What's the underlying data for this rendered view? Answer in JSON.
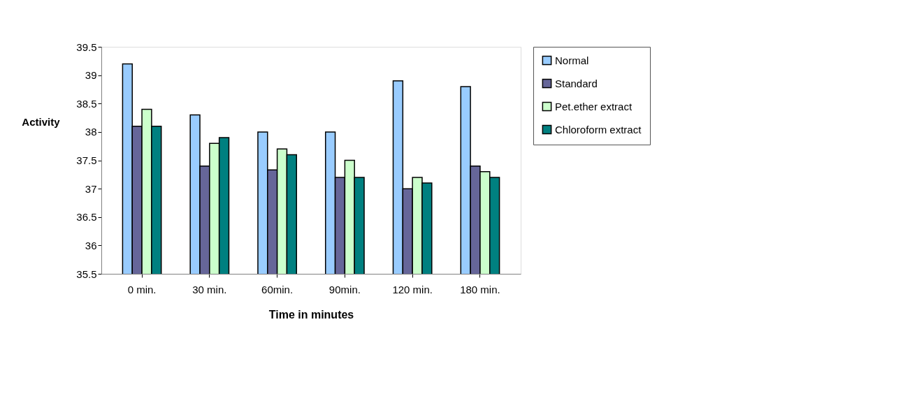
{
  "chart_data": {
    "type": "bar",
    "xlabel": "Time in minutes",
    "ylabel": "Activity",
    "categories": [
      "0 min.",
      "30 min.",
      "60min.",
      "90min.",
      "120 min.",
      "180 min."
    ],
    "series": [
      {
        "name": "Normal",
        "color": "#99ccff",
        "values": [
          39.2,
          38.3,
          38.0,
          38.0,
          38.9,
          38.8
        ]
      },
      {
        "name": "Standard",
        "color": "#666699",
        "values": [
          38.1,
          37.4,
          37.33,
          37.2,
          37.0,
          37.4
        ]
      },
      {
        "name": "Pet.ether extract",
        "color": "#ccffcc",
        "values": [
          38.4,
          37.8,
          37.7,
          37.5,
          37.2,
          37.3
        ]
      },
      {
        "name": "Chloroform extract",
        "color": "#008080",
        "values": [
          38.1,
          37.9,
          37.6,
          37.2,
          37.1,
          37.2
        ]
      }
    ],
    "ylim": [
      35.5,
      39.5
    ],
    "yticks": [
      35.5,
      36,
      36.5,
      37,
      37.5,
      38,
      38.5,
      39,
      39.5
    ],
    "grid": false,
    "legend": "right"
  }
}
